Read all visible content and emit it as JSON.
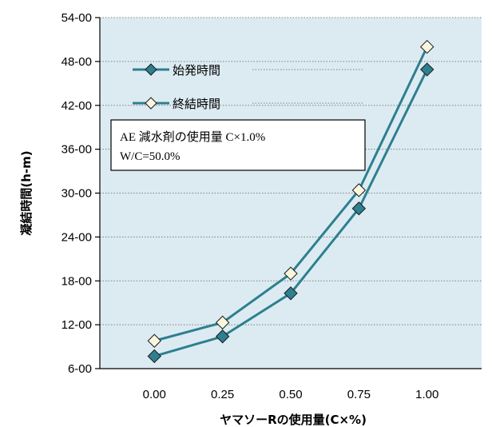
{
  "chart_data": {
    "type": "line",
    "xlabel": "ヤマソーRの使用量(C×%)",
    "ylabel": "凝結時間(h-m)",
    "x": [
      0.0,
      0.25,
      0.5,
      0.75,
      1.0
    ],
    "x_tick_labels": [
      "0.00",
      "0.25",
      "0.50",
      "0.75",
      "1.00"
    ],
    "xlim": [
      -0.2,
      1.2
    ],
    "y_tick_labels": [
      "6-00",
      "12-00",
      "18-00",
      "24-00",
      "30-00",
      "36-00",
      "42-00",
      "48-00",
      "54-00"
    ],
    "ylim": [
      6,
      54
    ],
    "y_ticks": [
      6,
      12,
      18,
      24,
      30,
      36,
      42,
      48,
      54
    ],
    "grid": "horizontal-dotted",
    "legend_position": "top-left",
    "series": [
      {
        "name": "始発時間",
        "values": [
          7.7,
          10.4,
          16.3,
          27.9,
          46.9
        ],
        "marker": "diamond",
        "marker_color": "#2e7f8f",
        "line_color": "#2e7f8f"
      },
      {
        "name": "終結時間",
        "values": [
          9.8,
          12.3,
          19.0,
          30.4,
          50.0
        ],
        "marker": "diamond",
        "marker_color": "#f8f6dc",
        "line_color": "#2e7f8f"
      }
    ],
    "annotation": {
      "line1": "AE 減水剤の使用量 C×1.0%",
      "line2": "W/C=50.0%"
    },
    "plot_background": "#dcebf2"
  }
}
